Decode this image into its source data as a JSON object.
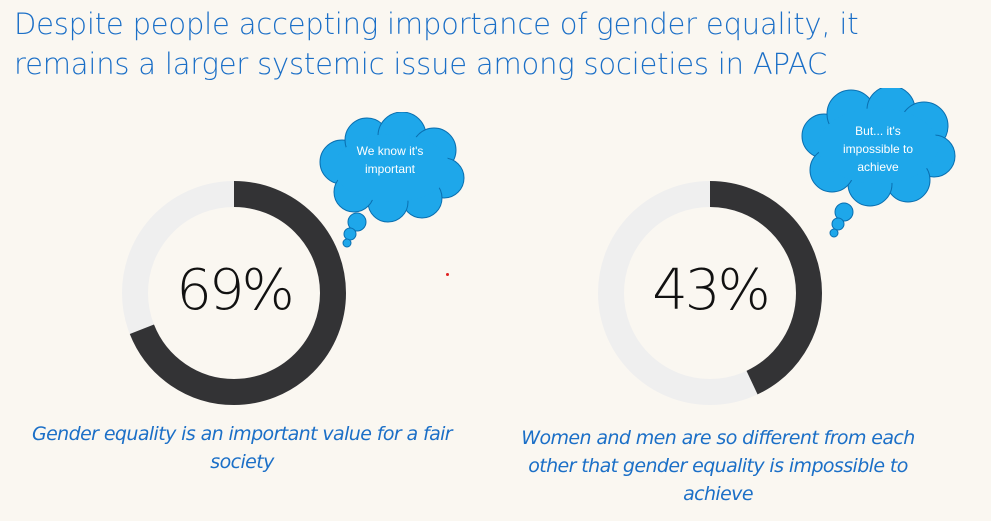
{
  "title": {
    "line1": "Despite people accepting importance of gender equality, it",
    "line2": "remains a larger systemic issue among societies in APAC"
  },
  "colors": {
    "title": "#1b6fc7",
    "ring_fill": "#333335",
    "ring_track": "#efefef",
    "cloud": "#1ea7ea",
    "caption": "#1b6fc7"
  },
  "stats": [
    {
      "value": 69,
      "label": "69%",
      "bubble": [
        "We know it's",
        "important"
      ],
      "caption": [
        "Gender equality is an important value for a fair",
        "society"
      ]
    },
    {
      "value": 43,
      "label": "43%",
      "bubble": [
        "But... it's",
        "impossible to",
        "achieve"
      ],
      "caption": [
        "Women and men are so different from each",
        "other that gender equality is impossible to",
        "achieve"
      ]
    }
  ]
}
